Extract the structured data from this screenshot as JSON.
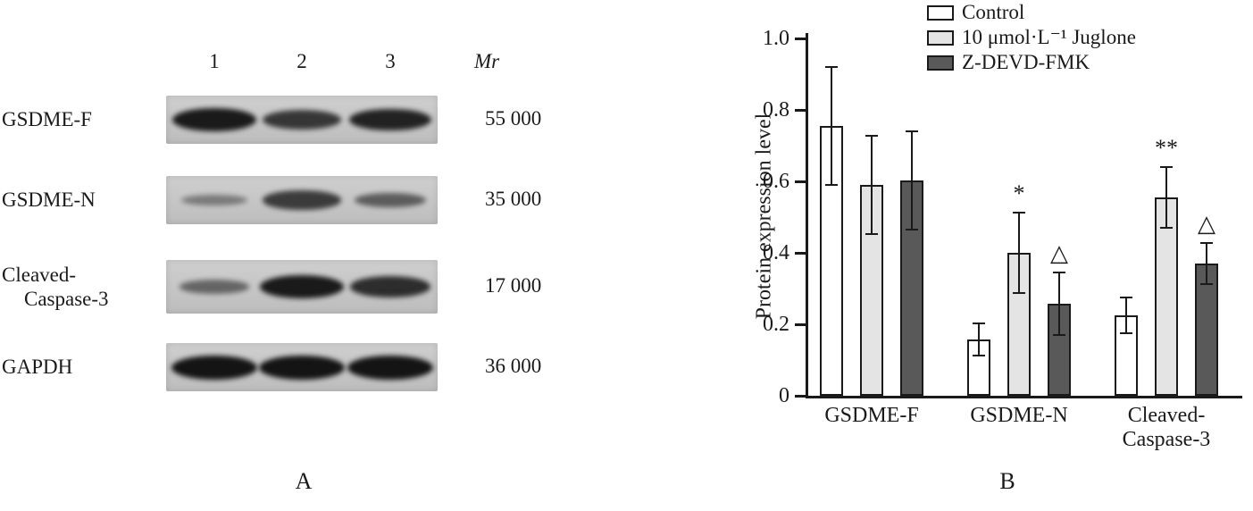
{
  "figure": {
    "panel_a_label": "A",
    "panel_b_label": "B"
  },
  "blot": {
    "lane_labels": [
      "1",
      "2",
      "3"
    ],
    "mr_header": "Mr",
    "rows": [
      {
        "label": "GSDME-F",
        "label2": "",
        "mr": "55 000",
        "bands": [
          0.95,
          0.72,
          0.88
        ]
      },
      {
        "label": "GSDME-N",
        "label2": "",
        "mr": "35 000",
        "bands": [
          0.18,
          0.68,
          0.42
        ]
      },
      {
        "label": "Cleaved-",
        "label2": "Caspase-3",
        "mr": "17 000",
        "bands": [
          0.35,
          0.95,
          0.8
        ]
      },
      {
        "label": "GAPDH",
        "label2": "",
        "mr": "36 000",
        "bands": [
          1.0,
          1.0,
          1.0
        ]
      }
    ]
  },
  "chart_data": {
    "type": "bar",
    "title": "",
    "xlabel": "",
    "ylabel": "Protein expression level",
    "ylim": [
      0,
      1.0
    ],
    "yticks": [
      0,
      0.2,
      0.4,
      0.6,
      0.8,
      1.0
    ],
    "grid": false,
    "legend_position": "top",
    "categories": [
      "GSDME-F",
      "GSDME-N",
      "Cleaved-\nCaspase-3"
    ],
    "series": [
      {
        "name": "Control",
        "color": "#ffffff",
        "values": [
          0.755,
          0.158,
          0.225
        ],
        "errors": [
          0.165,
          0.045,
          0.05
        ],
        "annotations": [
          "",
          "",
          ""
        ]
      },
      {
        "name": "10 μmol·L⁻¹ Juglone",
        "color": "#e4e4e4",
        "values": [
          0.59,
          0.4,
          0.555
        ],
        "errors": [
          0.138,
          0.112,
          0.085
        ],
        "annotations": [
          "",
          "*",
          "**"
        ]
      },
      {
        "name": "Z-DEVD-FMK",
        "color": "#595959",
        "values": [
          0.602,
          0.258,
          0.37
        ],
        "errors": [
          0.138,
          0.088,
          0.057
        ],
        "annotations": [
          "",
          "△",
          "△"
        ]
      }
    ]
  }
}
